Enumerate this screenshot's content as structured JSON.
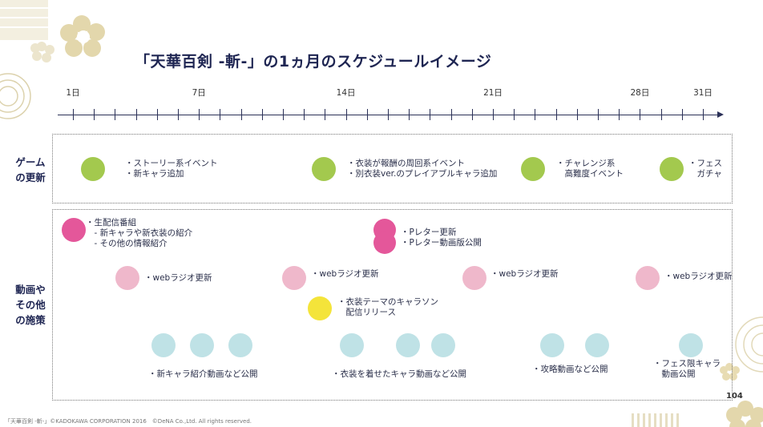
{
  "title": "「天華百剣 -斬-」の1ヵ月のスケジュールイメージ",
  "timeline": {
    "day_labels": [
      {
        "day": 1,
        "label": "1日"
      },
      {
        "day": 7,
        "label": "7日"
      },
      {
        "day": 14,
        "label": "14日"
      },
      {
        "day": 21,
        "label": "21日"
      },
      {
        "day": 28,
        "label": "28日"
      },
      {
        "day": 31,
        "label": "31日"
      }
    ]
  },
  "rows": {
    "game_update": {
      "label": [
        "ゲーム",
        "の更新"
      ],
      "items": [
        {
          "lines": [
            "・ストーリー系イベント",
            "・新キャラ追加"
          ]
        },
        {
          "lines": [
            "・衣装が報酬の周回系イベント",
            "・別衣装ver.のプレイアブルキャラ追加"
          ]
        },
        {
          "lines": [
            "・チャレンジ系",
            "　高難度イベント"
          ]
        },
        {
          "lines": [
            "・フェス",
            "　ガチャ"
          ]
        }
      ]
    },
    "video_measures": {
      "label": [
        "動画や",
        "その他",
        "の施策"
      ],
      "live": {
        "lines": [
          "・生配信番組",
          "　- 新キャラや新衣装の紹介",
          "　- その他の情報紹介"
        ]
      },
      "pletter": {
        "lines": [
          "・Pレター更新",
          "・Pレター動画版公開"
        ]
      },
      "web_radio": [
        "・webラジオ更新",
        "・webラジオ更新",
        "・webラジオ更新",
        "・webラジオ更新"
      ],
      "costume_song": {
        "lines": [
          "・衣装テーマのキャラソン",
          "　配信リリース"
        ]
      },
      "videos": [
        "・新キャラ紹介動画など公開",
        "・衣装を着せたキャラ動画など公開",
        "・攻略動画など公開"
      ],
      "fes_video": {
        "lines": [
          "・フェス限キャラ",
          "　動画公開"
        ]
      }
    }
  },
  "colors": {
    "green": "#a3c94e",
    "magenta": "#e4579a",
    "pink": "#efb8cb",
    "yellow": "#f4e43a",
    "light_blue": "#bfe2e6",
    "navy": "#1e2552"
  },
  "page_number": "104",
  "footer": "「天華百剣 -斬-」©KADOKAWA CORPORATION 2016　©DeNA Co.,Ltd. All rights reserved."
}
